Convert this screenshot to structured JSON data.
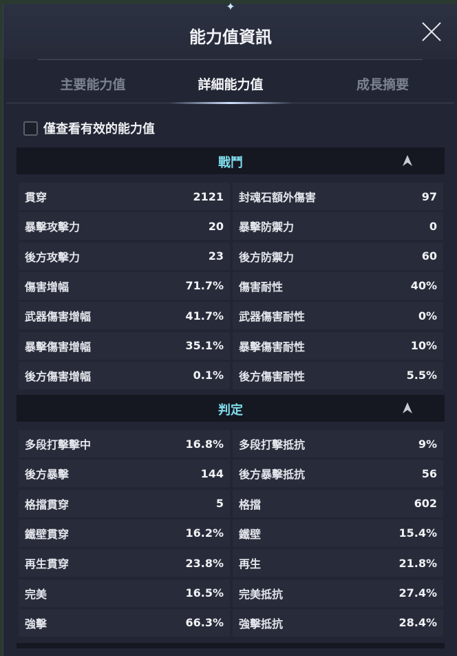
{
  "title": "能力值資訊",
  "tabs": [
    {
      "label": "主要能力值"
    },
    {
      "label": "詳細能力值"
    },
    {
      "label": "成長摘要"
    }
  ],
  "filter_checkbox": {
    "label": "僅查看有效的能力值",
    "checked": false
  },
  "sections": [
    {
      "title": "戰鬥",
      "rows": [
        [
          [
            "貫穿",
            "2121"
          ],
          [
            "封魂石額外傷害",
            "97"
          ]
        ],
        [
          [
            "暴擊攻擊力",
            "20"
          ],
          [
            "暴擊防禦力",
            "0"
          ]
        ],
        [
          [
            "後方攻擊力",
            "23"
          ],
          [
            "後方防禦力",
            "60"
          ]
        ],
        [
          [
            "傷害增幅",
            "71.7%"
          ],
          [
            "傷害耐性",
            "40%"
          ]
        ],
        [
          [
            "武器傷害增幅",
            "41.7%"
          ],
          [
            "武器傷害耐性",
            "0%"
          ]
        ],
        [
          [
            "暴擊傷害增幅",
            "35.1%"
          ],
          [
            "暴擊傷害耐性",
            "10%"
          ]
        ],
        [
          [
            "後方傷害增幅",
            "0.1%"
          ],
          [
            "後方傷害耐性",
            "5.5%"
          ]
        ]
      ]
    },
    {
      "title": "判定",
      "rows": [
        [
          [
            "多段打擊擊中",
            "16.8%"
          ],
          [
            "多段打擊抵抗",
            "9%"
          ]
        ],
        [
          [
            "後方暴擊",
            "144"
          ],
          [
            "後方暴擊抵抗",
            "56"
          ]
        ],
        [
          [
            "格擋貫穿",
            "5"
          ],
          [
            "格擋",
            "602"
          ]
        ],
        [
          [
            "鐵壁貫穿",
            "16.2%"
          ],
          [
            "鐵壁",
            "15.4%"
          ]
        ],
        [
          [
            "再生貫穿",
            "23.8%"
          ],
          [
            "再生",
            "21.8%"
          ]
        ],
        [
          [
            "完美",
            "16.5%"
          ],
          [
            "完美抵抗",
            "27.4%"
          ]
        ],
        [
          [
            "強擊",
            "66.3%"
          ],
          [
            "強擊抵抗",
            "28.4%"
          ]
        ]
      ]
    }
  ],
  "colors": {
    "section_title": "#7fdcec",
    "panel": "#222634",
    "row": "#282c3a"
  }
}
